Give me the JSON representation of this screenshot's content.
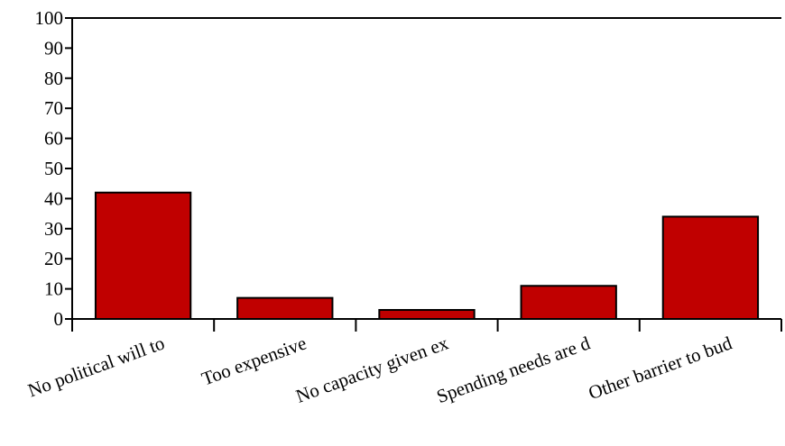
{
  "chart_data": {
    "type": "bar",
    "categories": [
      "No political will to",
      "Too expensive",
      "No capacity given ex",
      "Spending needs are d",
      "Other barrier to bud"
    ],
    "values": [
      42,
      7,
      3,
      11,
      34
    ],
    "ylim": [
      0,
      100
    ],
    "yticks": [
      0,
      10,
      20,
      30,
      40,
      50,
      60,
      70,
      80,
      90,
      100
    ],
    "bar_color": "#c00000",
    "bar_outline": "#000000",
    "grid": false,
    "legend": "none"
  }
}
